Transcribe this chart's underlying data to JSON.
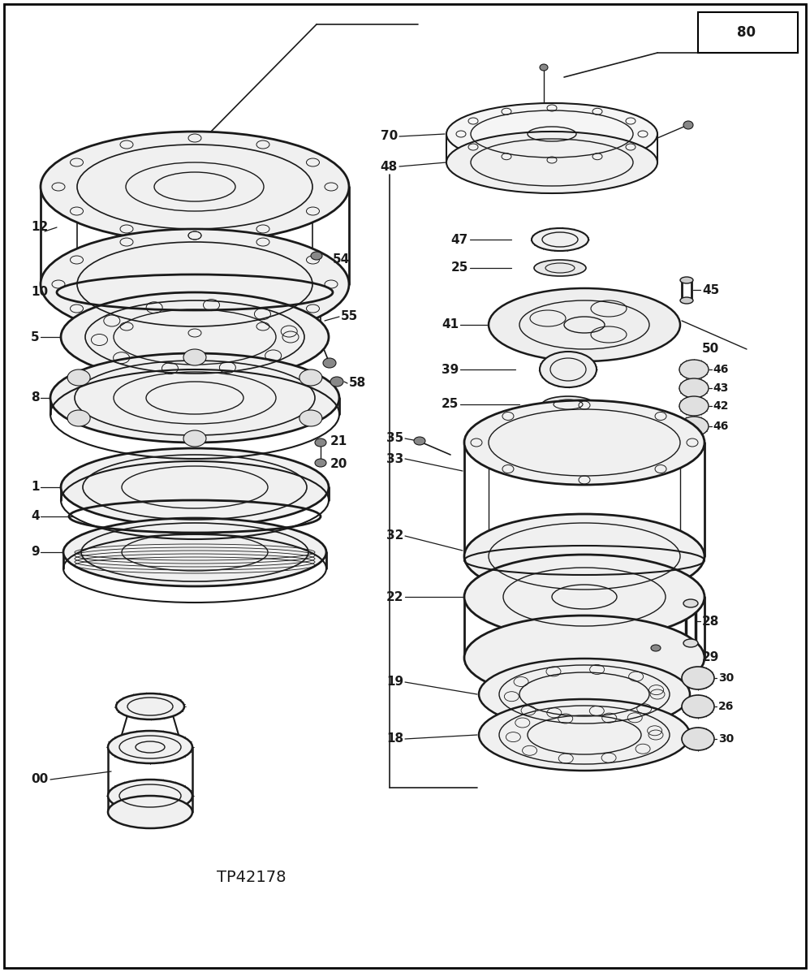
{
  "bg_color": "#ffffff",
  "line_color": "#1a1a1a",
  "title": "TP42178",
  "figsize": [
    9.98,
    11.97
  ],
  "dpi": 100
}
